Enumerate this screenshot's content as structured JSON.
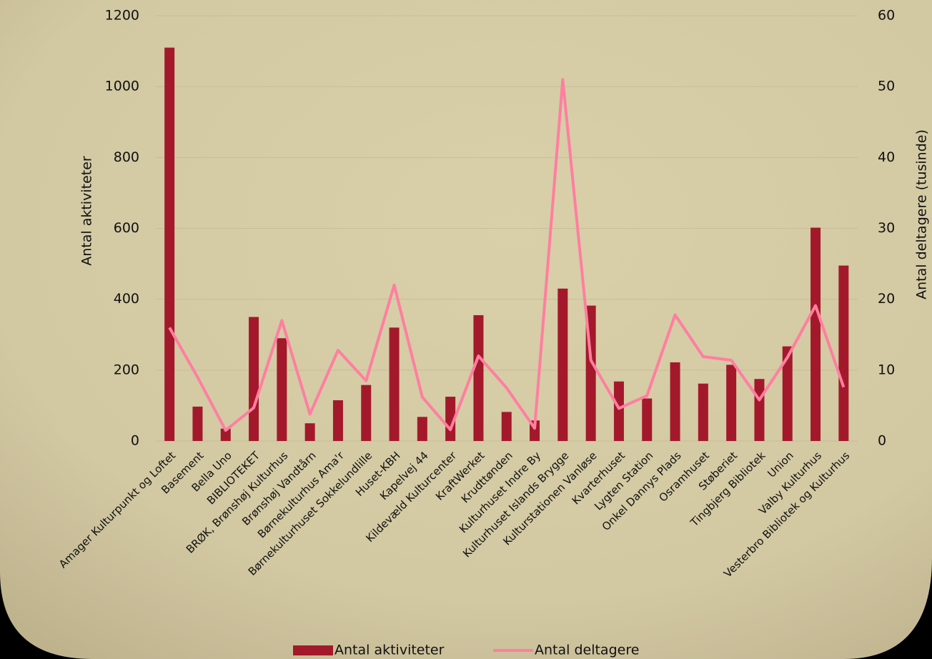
{
  "chart_data": {
    "type": "bar_line",
    "categories": [
      "Amager Kulturpunkt og Loftet",
      "Basement",
      "Bella Uno",
      "BIBLIOTEKET",
      "BRØK, Brønshøj Kulturhus",
      "Brønshøj Vandtårn",
      "Børnekulturhus Ama'r",
      "Børnekulturhuset Sokkelundlille",
      "Huset-KBH",
      "Kapelvej 44",
      "Kildevæld Kulturcenter",
      "KraftWerket",
      "Krudttønden",
      "Kulturhuset Indre By",
      "Kulturhuset Islands Brygge",
      "Kulturstationen Vanløse",
      "Kvarterhuset",
      "Lygten Station",
      "Onkel Dannys Plads",
      "Osramhuset",
      "Støberiet",
      "Tingbjerg Bibliotek",
      "Union",
      "Valby Kulturhus",
      "Vesterbro Bibliotek og Kulturhus"
    ],
    "series": [
      {
        "name": "Antal aktiviteter",
        "color": "#a3192b",
        "type": "bar",
        "values": [
          1110,
          97,
          35,
          350,
          290,
          50,
          115,
          158,
          320,
          68,
          125,
          355,
          82,
          58,
          430,
          382,
          168,
          120,
          222,
          162,
          215,
          175,
          267,
          602,
          495
        ]
      },
      {
        "name": "Antal deltagere",
        "color": "#ff7fa0",
        "type": "line",
        "axis": "y2",
        "values": [
          16,
          9,
          1.5,
          4.7,
          17,
          3.8,
          12.8,
          8.5,
          22,
          6.2,
          1.6,
          12,
          7.5,
          1.8,
          51,
          11.4,
          4.6,
          6.4,
          17.8,
          11.9,
          11.4,
          5.8,
          11.8,
          19.1,
          7.6
        ]
      }
    ],
    "ylabel": "Antal aktiviteter",
    "y2label": "Antal deltagere (tusinde)",
    "ylim": [
      0,
      1200
    ],
    "yticks": [
      0,
      200,
      400,
      600,
      800,
      1000,
      1200
    ],
    "y2lim": [
      0,
      60
    ],
    "y2ticks": [
      0,
      10,
      20,
      30,
      40,
      50,
      60
    ],
    "grid": true,
    "legend": "bottom"
  }
}
